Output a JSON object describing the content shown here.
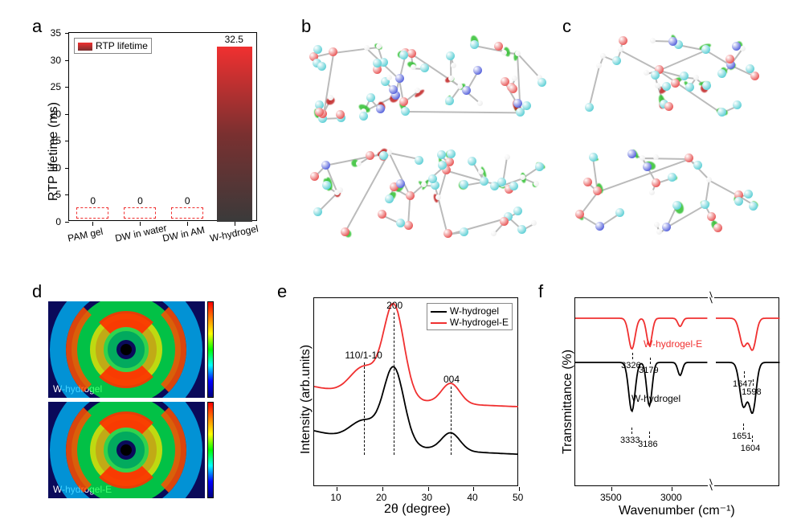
{
  "panels": {
    "a": {
      "label": "a",
      "ylabel": "RTP lifetime (ms)",
      "legend": "RTP lifetime",
      "ylim": [
        0,
        35
      ],
      "ytick_step": 5,
      "categories": [
        "PAM gel",
        "DW in water",
        "DW in AM",
        "W-hydrogel"
      ],
      "values": [
        0,
        0,
        0,
        32.5
      ],
      "bar_top_color": "#f03030",
      "bar_bottom_color": "#3a3a3a",
      "zero_dash_color": "#f03030",
      "value_label": "32.5",
      "zero_label": "0"
    },
    "b": {
      "label": "b"
    },
    "c": {
      "label": "c"
    },
    "d": {
      "label": "d",
      "top_label": "W-hydrogel",
      "bottom_label": "W-hydrogel-E",
      "bg_color": "#00007a"
    },
    "e": {
      "label": "e",
      "ylabel": "Intensity (arb.units)",
      "xlabel": "2θ (degree)",
      "xlim": [
        5,
        50
      ],
      "xtick_step": 10,
      "series": [
        {
          "name": "W-hydrogel",
          "color": "#000000"
        },
        {
          "name": "W-hydrogel-E",
          "color": "#f03030"
        }
      ],
      "peaks": [
        {
          "label": "110/1-10",
          "x": 16
        },
        {
          "label": "200",
          "x": 22.5
        },
        {
          "label": "004",
          "x": 35
        }
      ]
    },
    "f": {
      "label": "f",
      "ylabel": "Transmittance (%)",
      "xlabel": "Wavenumber (cm⁻¹)",
      "xticks_left": [
        3500,
        3000
      ],
      "xticks_right": [],
      "series": [
        {
          "name": "W-hydrogel-E",
          "color": "#f03030"
        },
        {
          "name": "W-hydrogel",
          "color": "#000000"
        }
      ],
      "annotations_red": [
        "3326",
        "3179",
        "1647",
        "1598"
      ],
      "annotations_black": [
        "3333",
        "3186",
        "1651",
        "1604"
      ]
    }
  },
  "atom_colors": {
    "C": "#2ac0c8",
    "O": "#e02020",
    "N": "#2030d0",
    "H": "#e8e8e8"
  },
  "lobe_colors": {
    "pos": "#30c030",
    "neg": "#c02020"
  }
}
